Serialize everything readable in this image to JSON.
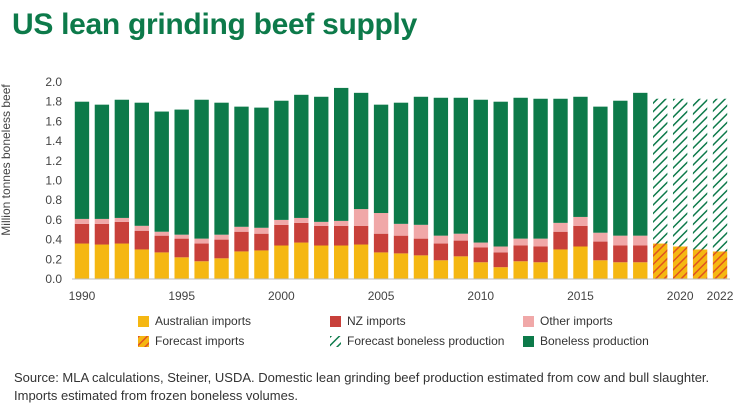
{
  "title": "US lean grinding beef supply",
  "source": "Source: MLA calculations, Steiner, USDA. Domestic lean grinding beef production estimated from cow and bull slaughter. Imports estimated from frozen boneless volumes.",
  "chart_data": {
    "type": "bar",
    "stacked": true,
    "ylabel": "Million tonnes boneless beef",
    "xlabel": "",
    "ylim": [
      0,
      2.0
    ],
    "yticks": [
      "0.0",
      "0.2",
      "0.4",
      "0.6",
      "0.8",
      "1.0",
      "1.2",
      "1.4",
      "1.6",
      "1.8",
      "2.0"
    ],
    "x_tick_labels": [
      "1990",
      "1995",
      "2000",
      "2005",
      "2010",
      "2015",
      "2020",
      "2022"
    ],
    "categories": [
      1990,
      1991,
      1992,
      1993,
      1994,
      1995,
      1996,
      1997,
      1998,
      1999,
      2000,
      2001,
      2002,
      2003,
      2004,
      2005,
      2006,
      2007,
      2008,
      2009,
      2010,
      2011,
      2012,
      2013,
      2014,
      2015,
      2016,
      2017,
      2018,
      2019,
      2020,
      2021,
      2022
    ],
    "totals": [
      1.8,
      1.77,
      1.82,
      1.79,
      1.7,
      1.72,
      1.82,
      1.79,
      1.75,
      1.74,
      1.81,
      1.87,
      1.85,
      1.94,
      1.89,
      1.77,
      1.79,
      1.85,
      1.84,
      1.84,
      1.82,
      1.8,
      1.84,
      1.83,
      1.83,
      1.85,
      1.75,
      1.81,
      1.89,
      1.83,
      1.83,
      1.83,
      1.83
    ],
    "series": [
      {
        "name": "Australian imports",
        "color": "#f5b712",
        "values": [
          0.36,
          0.35,
          0.36,
          0.3,
          0.27,
          0.22,
          0.18,
          0.21,
          0.28,
          0.29,
          0.34,
          0.37,
          0.34,
          0.34,
          0.35,
          0.27,
          0.26,
          0.24,
          0.19,
          0.23,
          0.17,
          0.12,
          0.18,
          0.17,
          0.3,
          0.33,
          0.19,
          0.17,
          0.17,
          0,
          0,
          0,
          0
        ]
      },
      {
        "name": "NZ imports",
        "color": "#c8403a",
        "values": [
          0.2,
          0.21,
          0.22,
          0.19,
          0.17,
          0.19,
          0.18,
          0.19,
          0.2,
          0.17,
          0.21,
          0.2,
          0.2,
          0.2,
          0.19,
          0.19,
          0.18,
          0.17,
          0.17,
          0.16,
          0.15,
          0.15,
          0.16,
          0.16,
          0.18,
          0.21,
          0.19,
          0.17,
          0.17,
          0,
          0,
          0,
          0
        ]
      },
      {
        "name": "Other imports",
        "color": "#f0a8a8",
        "values": [
          0.05,
          0.05,
          0.04,
          0.05,
          0.04,
          0.04,
          0.05,
          0.05,
          0.05,
          0.06,
          0.05,
          0.05,
          0.04,
          0.05,
          0.17,
          0.21,
          0.12,
          0.14,
          0.08,
          0.07,
          0.05,
          0.06,
          0.07,
          0.08,
          0.09,
          0.09,
          0.09,
          0.1,
          0.1,
          0,
          0,
          0,
          0
        ]
      },
      {
        "name": "Forecast imports",
        "color": "#f5b712",
        "pattern_color": "#e0521f",
        "values": [
          0,
          0,
          0,
          0,
          0,
          0,
          0,
          0,
          0,
          0,
          0,
          0,
          0,
          0,
          0,
          0,
          0,
          0,
          0,
          0,
          0,
          0,
          0,
          0,
          0,
          0,
          0,
          0,
          0,
          0.36,
          0.33,
          0.3,
          0.28
        ]
      },
      {
        "name": "Forecast boneless production",
        "color": "#ffffff",
        "pattern_color": "#0d7a4a",
        "values": [
          0,
          0,
          0,
          0,
          0,
          0,
          0,
          0,
          0,
          0,
          0,
          0,
          0,
          0,
          0,
          0,
          0,
          0,
          0,
          0,
          0,
          0,
          0,
          0,
          0,
          0,
          0,
          0,
          0,
          1.47,
          1.5,
          1.53,
          1.55
        ]
      },
      {
        "name": "Boneless production",
        "color": "#0d7a4a",
        "values": [
          1.19,
          1.16,
          1.2,
          1.25,
          1.22,
          1.27,
          1.41,
          1.34,
          1.22,
          1.22,
          1.21,
          1.25,
          1.27,
          1.35,
          1.18,
          1.1,
          1.23,
          1.3,
          1.4,
          1.38,
          1.45,
          1.47,
          1.43,
          1.42,
          1.26,
          1.22,
          1.28,
          1.37,
          1.45,
          0,
          0,
          0,
          0
        ]
      }
    ],
    "legend": [
      "Australian imports",
      "NZ imports",
      "Other imports",
      "Forecast imports",
      "Forecast boneless production",
      "Boneless production"
    ],
    "legend_position": "bottom",
    "grid": false
  }
}
